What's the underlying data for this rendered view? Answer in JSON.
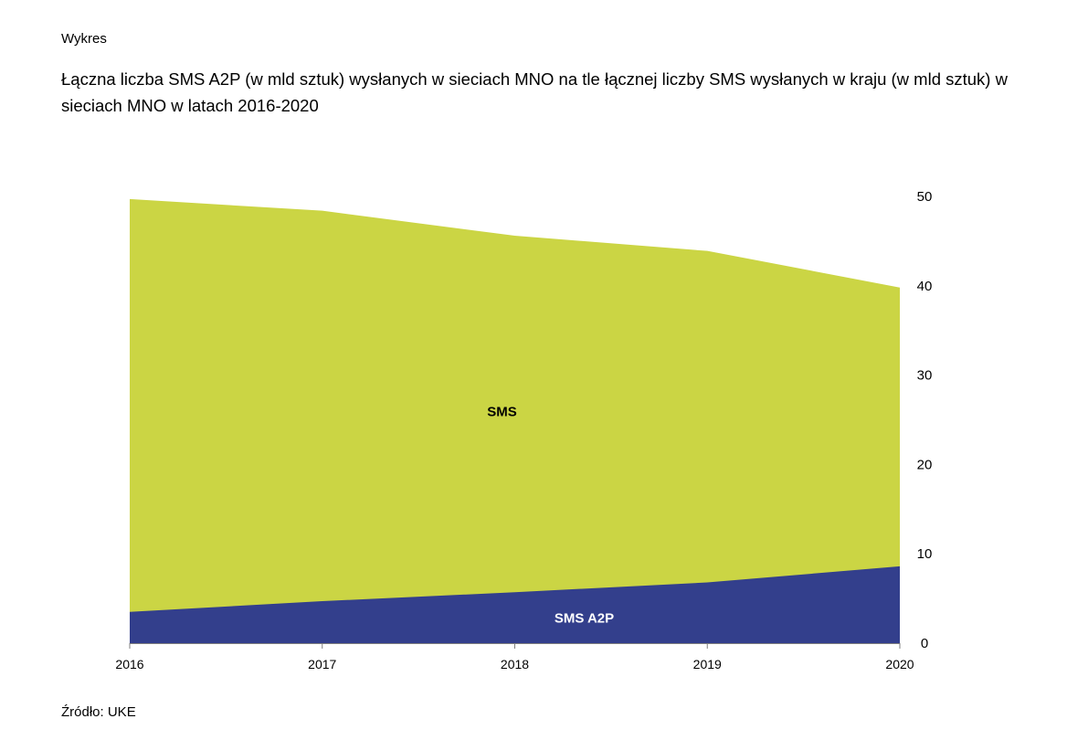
{
  "header": {
    "kicker": "Wykres",
    "title": "Łączna liczba SMS A2P (w mld sztuk) wysłanych w sieciach MNO na tle łącznej liczby SMS wysłanych w kraju (w mld sztuk) w sieciach MNO w latach 2016-2020"
  },
  "footer": {
    "source": "Źródło: UKE"
  },
  "chart_data": {
    "type": "area",
    "stacked": false,
    "x": [
      "2016",
      "2017",
      "2018",
      "2019",
      "2020"
    ],
    "ylim": [
      0,
      50
    ],
    "yticks": [
      0,
      10,
      20,
      30,
      40,
      50
    ],
    "y_axis_position": "right",
    "grid": false,
    "legend": "none",
    "xlabel": "",
    "ylabel": "",
    "series": [
      {
        "name": "SMS",
        "values": [
          49.7,
          48.4,
          45.6,
          43.9,
          39.8
        ],
        "color": "#cbd544"
      },
      {
        "name": "SMS A2P",
        "values": [
          3.5,
          4.7,
          5.7,
          6.8,
          8.6
        ],
        "color": "#333f8c"
      }
    ],
    "axis_color": "#7f7f7f"
  }
}
